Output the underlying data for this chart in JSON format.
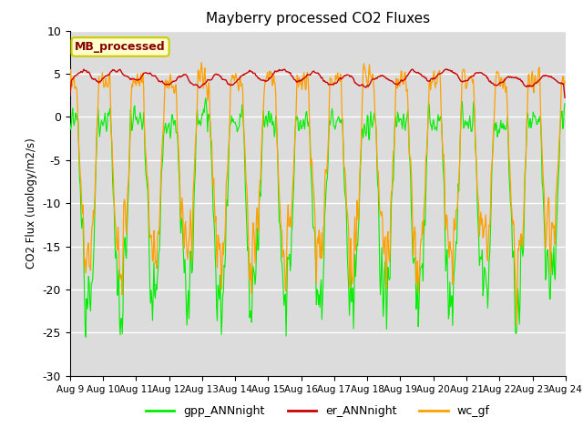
{
  "title": "Mayberry processed CO2 Fluxes",
  "ylabel": "CO2 Flux (urology/m2/s)",
  "legend_label": "MB_processed",
  "ylim": [
    -30,
    10
  ],
  "bg_color": "#dcdcdc",
  "series": {
    "gpp_ANNnight": {
      "color": "#00ee00",
      "label": "gpp_ANNnight"
    },
    "er_ANNnight": {
      "color": "#cc0000",
      "label": "er_ANNnight"
    },
    "wc_gf": {
      "color": "#ffa000",
      "label": "wc_gf"
    }
  },
  "xtick_labels": [
    "Aug 9",
    "Aug 10",
    "Aug 11",
    "Aug 12",
    "Aug 13",
    "Aug 14",
    "Aug 15",
    "Aug 16",
    "Aug 17",
    "Aug 18",
    "Aug 19",
    "Aug 20",
    "Aug 21",
    "Aug 22",
    "Aug 23",
    "Aug 24"
  ],
  "ytick_labels": [
    10,
    5,
    0,
    -5,
    -10,
    -15,
    -20,
    -25,
    -30
  ],
  "legend_box_facecolor": "#ffffcc",
  "legend_box_edgecolor": "#cccc00",
  "legend_label_color": "#880000",
  "figsize": [
    6.4,
    4.8
  ],
  "dpi": 100
}
